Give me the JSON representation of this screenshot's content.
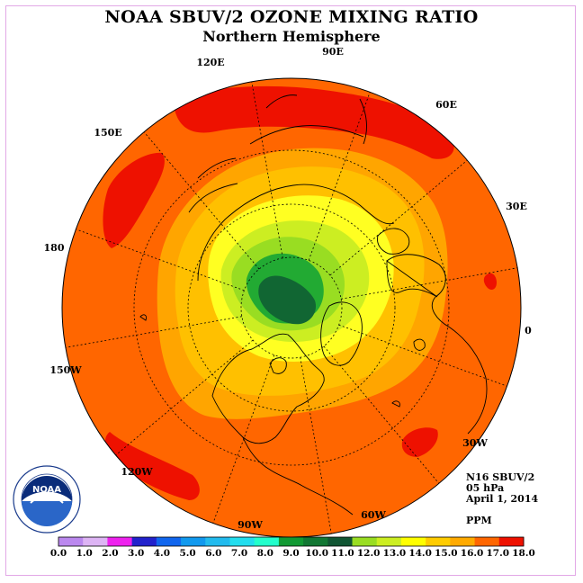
{
  "title": "NOAA SBUV/2 OZONE MIXING RATIO",
  "subtitle": "Northern Hemisphere",
  "longitude_labels": [
    {
      "id": "lon-120e",
      "text": "120E"
    },
    {
      "id": "lon-90e",
      "text": "90E"
    },
    {
      "id": "lon-60e",
      "text": "60E"
    },
    {
      "id": "lon-150e",
      "text": "150E"
    },
    {
      "id": "lon-30e",
      "text": "30E"
    },
    {
      "id": "lon-180",
      "text": "180"
    },
    {
      "id": "lon-0",
      "text": "0"
    },
    {
      "id": "lon-150w",
      "text": "150W"
    },
    {
      "id": "lon-30w",
      "text": "30W"
    },
    {
      "id": "lon-120w",
      "text": "120W"
    },
    {
      "id": "lon-60w",
      "text": "60W"
    },
    {
      "id": "lon-90w",
      "text": "90W"
    }
  ],
  "info": {
    "instrument": "N16 SBUV/2",
    "level": "05 hPa",
    "date": "April 1, 2014",
    "units": "PPM"
  },
  "logo_text": "NOAA",
  "colorbar": {
    "ticks": [
      "0.0",
      "1.0",
      "2.0",
      "3.0",
      "4.0",
      "5.0",
      "6.0",
      "7.0",
      "8.0",
      "9.0",
      "10.0",
      "11.0",
      "12.0",
      "13.0",
      "14.0",
      "15.0",
      "16.0",
      "17.0",
      "18.0"
    ],
    "colors": [
      "#bb88ee",
      "#ddb4f4",
      "#ee22ee",
      "#2222cc",
      "#1166ee",
      "#1199ee",
      "#22bbee",
      "#22ddee",
      "#22ffcc",
      "#119933",
      "#117733",
      "#105533",
      "#99dd22",
      "#ccee22",
      "#ffff00",
      "#ffcc00",
      "#ffaa00",
      "#ff6600",
      "#ee1100",
      "#885533"
    ]
  },
  "colors": {
    "ring_16": "#ff6600",
    "band_15": "#ffa500",
    "band_14": "#ffc000",
    "band_13": "#ffff22",
    "band_12": "#ccee22",
    "band_11": "#99dd22",
    "band_10": "#22aa33",
    "core_9": "#116633",
    "high_17": "#ee1100"
  }
}
